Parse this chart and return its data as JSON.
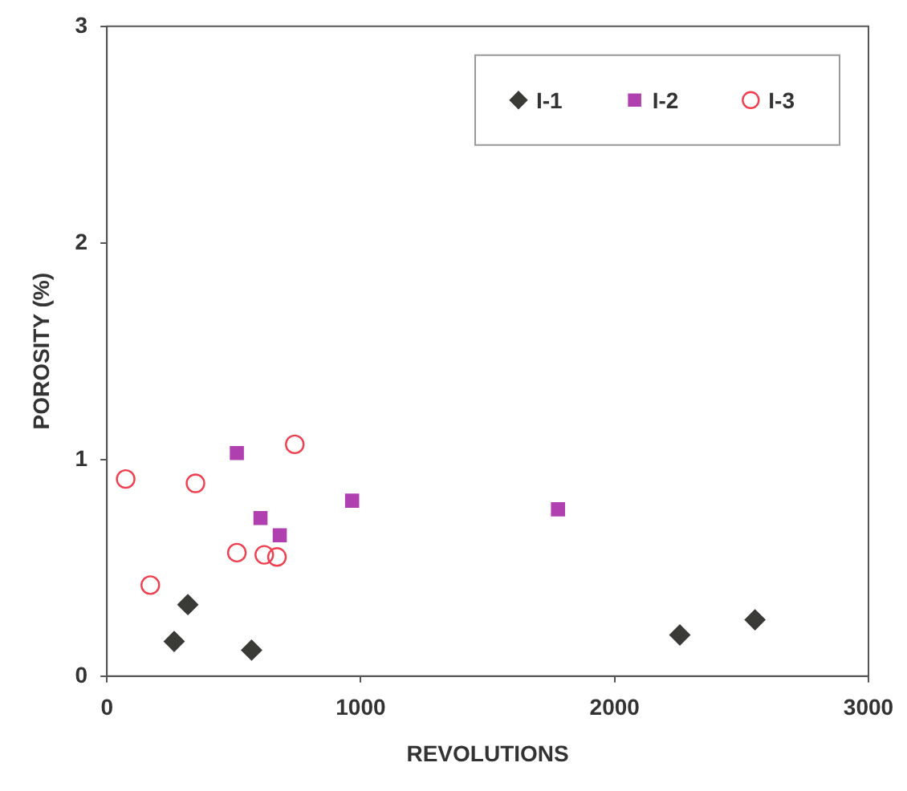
{
  "chart_data": {
    "type": "scatter",
    "xlabel": "REVOLUTIONS",
    "ylabel": "POROSITY (%)",
    "xlim": [
      0,
      3000
    ],
    "xticks": [
      0,
      1000,
      2000,
      3000
    ],
    "ylim": [
      0,
      3
    ],
    "yticks": [
      0,
      1,
      2,
      3
    ],
    "grid": false,
    "legend": "top right",
    "series": [
      {
        "name": "I-1",
        "color": "#3a3a36",
        "marker": "diamond",
        "x": [
          265,
          319,
          570,
          2257,
          2553
        ],
        "values": [
          0.16,
          0.33,
          0.12,
          0.19,
          0.26
        ]
      },
      {
        "name": "I-2",
        "color": "#b040b0",
        "marker": "square",
        "x": [
          512,
          605,
          681,
          966,
          1777
        ],
        "values": [
          1.03,
          0.73,
          0.65,
          0.81,
          0.77
        ]
      },
      {
        "name": "I-3",
        "color": "#f04050",
        "marker": "circle",
        "x": [
          74,
          349,
          740,
          512,
          620,
          670,
          171
        ],
        "values": [
          0.91,
          0.89,
          1.07,
          0.57,
          0.56,
          0.55,
          0.42
        ]
      }
    ]
  }
}
